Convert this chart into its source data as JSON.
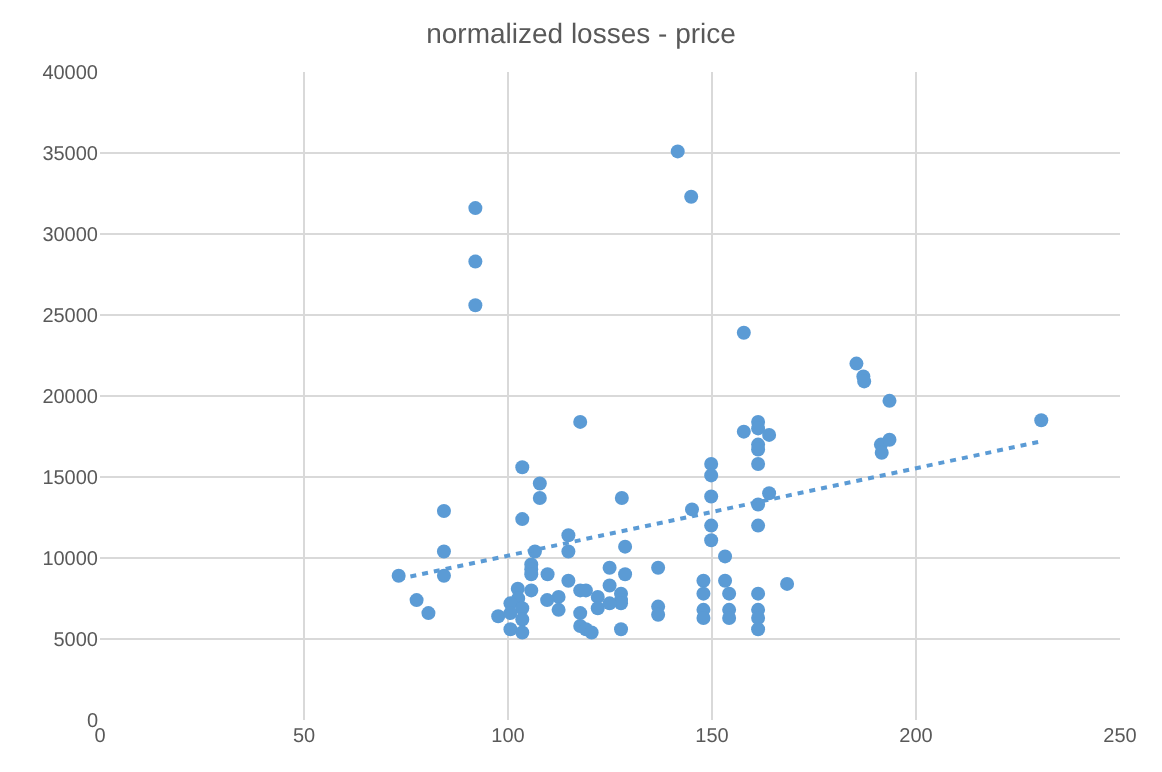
{
  "chart_data": {
    "type": "scatter",
    "title": "normalized losses - price",
    "xlim": [
      0,
      250
    ],
    "xticks": [
      0,
      50,
      100,
      150,
      200,
      250
    ],
    "ylim": [
      0,
      40000
    ],
    "yticks": [
      0,
      5000,
      10000,
      15000,
      20000,
      25000,
      30000,
      35000,
      40000
    ],
    "grid": true,
    "marker": "circle",
    "series": [
      {
        "color": "#5b9bd5",
        "x": [
          73.2,
          84.3,
          84.3,
          84.3,
          77.6,
          80.5,
          92,
          92,
          92,
          141.6,
          144.9,
          157.8,
          117.7,
          157.8,
          161.3,
          161.3,
          164,
          161.3,
          161.3,
          161.3,
          164,
          161.3,
          161.3,
          149.8,
          149.8,
          149.8,
          145.1,
          149.8,
          149.8,
          153.2,
          103.5,
          107.8,
          107.8,
          127.9,
          103.5,
          114.8,
          114.8,
          106.6,
          128.7,
          105.7,
          105.7,
          105.7,
          109.7,
          136.8,
          124.9,
          128.7,
          124.9,
          168.4,
          147.9,
          153.2,
          147.9,
          154.2,
          161.3,
          102.4,
          105.7,
          114.8,
          117.7,
          119.1,
          127.7,
          122,
          112.4,
          109.6,
          127.7,
          102.5,
          127.7,
          122,
          124.9,
          136.8,
          136.8,
          100.6,
          103.5,
          112.4,
          97.6,
          100.6,
          117.7,
          147.9,
          147.9,
          154.2,
          154.2,
          161.3,
          161.3,
          103.5,
          100.6,
          103.5,
          117.7,
          119.1,
          120.5,
          127.7,
          161.3,
          185.4,
          187.1,
          187.3,
          193.5,
          191.4,
          193.5,
          191.6,
          230.7
        ],
        "values": [
          8900,
          12900,
          10400,
          8900,
          7400,
          6600,
          31600,
          28300,
          25600,
          35100,
          32300,
          23900,
          18400,
          17800,
          18400,
          18000,
          17600,
          17000,
          16700,
          15800,
          14000,
          13300,
          12000,
          15800,
          15100,
          13800,
          13000,
          12000,
          11100,
          10100,
          15600,
          14600,
          13700,
          13700,
          12400,
          11400,
          10400,
          10400,
          10700,
          9600,
          9300,
          9000,
          9000,
          9400,
          9400,
          9000,
          8300,
          8400,
          8600,
          8600,
          7800,
          7800,
          7800,
          8100,
          8000,
          8600,
          8000,
          8000,
          7800,
          7600,
          7600,
          7400,
          7400,
          7500,
          7200,
          6900,
          7200,
          7000,
          6500,
          7200,
          6900,
          6800,
          6400,
          6600,
          6600,
          6800,
          6300,
          6800,
          6300,
          6800,
          6300,
          6200,
          5600,
          5400,
          5800,
          5600,
          5400,
          5600,
          5600,
          22000,
          21200,
          20900,
          19700,
          17000,
          17300,
          16500,
          18500
        ]
      },
      {
        "type": "line",
        "color": "#5b9bd5",
        "marker": "none",
        "line_style": "dotted",
        "x": [
          73.2,
          230.7
        ],
        "values": [
          8700,
          17200
        ]
      }
    ]
  }
}
